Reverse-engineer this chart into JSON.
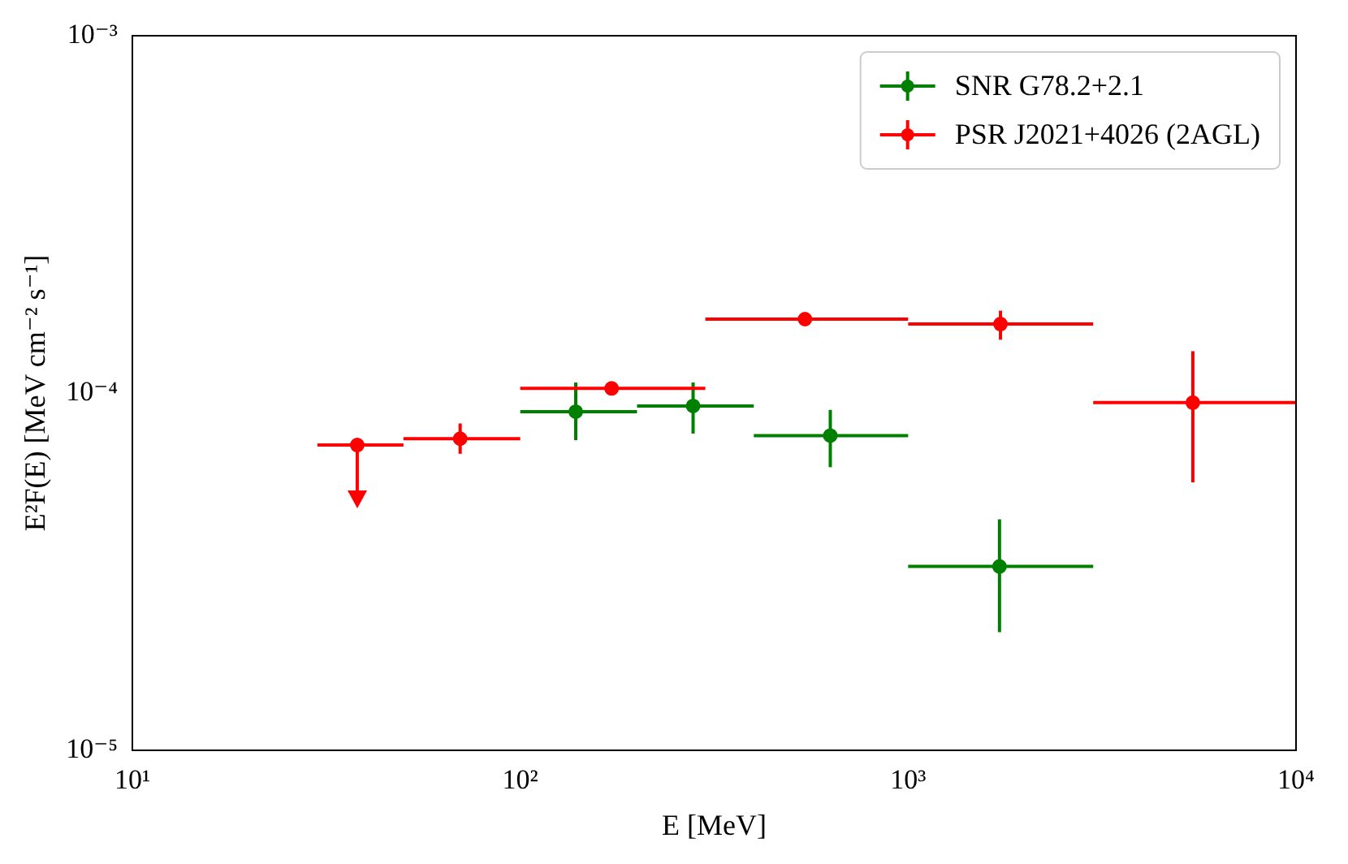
{
  "chart_data": {
    "type": "scatter",
    "xlabel": "E [MeV]",
    "ylabel": "E²F(E) [MeV cm⁻² s⁻¹]",
    "log": "xy",
    "grid": false,
    "legend": "top right",
    "marker": "circle",
    "xlim": [
      10,
      10000
    ],
    "xticks": [
      {
        "value": 10,
        "label": "10¹"
      },
      {
        "value": 100,
        "label": "10²"
      },
      {
        "value": 1000,
        "label": "10³"
      },
      {
        "value": 10000,
        "label": "10⁴"
      }
    ],
    "ylim": [
      1e-05,
      0.001
    ],
    "yticks": [
      {
        "value": 1e-05,
        "label": "10⁻⁵"
      },
      {
        "value": 0.0001,
        "label": "10⁻⁴"
      },
      {
        "value": 0.001,
        "label": "10⁻³"
      }
    ],
    "series": [
      {
        "name": "SNR G78.2+2.1",
        "color": "#008000",
        "x": [
          139,
          279,
          630,
          1720
        ],
        "values": [
          8.87e-05,
          9.2e-05,
          7.6e-05,
          3.27e-05
        ],
        "xerrors": [
          [
            100,
            200
          ],
          [
            200,
            400
          ],
          [
            400,
            1000
          ],
          [
            1000,
            3000
          ]
        ],
        "errors": [
          [
            7.38e-05,
            0.000107
          ],
          [
            7.7e-05,
            0.000107
          ],
          [
            6.2e-05,
            8.97e-05
          ],
          [
            2.14e-05,
            4.43e-05
          ]
        ]
      },
      {
        "name": "PSR J2021+4026 (2AGL)",
        "color": "#ff0000",
        "x": [
          38,
          70,
          172,
          542,
          1730,
          5420
        ],
        "values": [
          7.15e-05,
          7.45e-05,
          0.000103,
          0.000161,
          0.000156,
          9.4e-05
        ],
        "xerrors": [
          [
            30,
            50
          ],
          [
            50,
            100
          ],
          [
            100,
            300
          ],
          [
            300,
            1000
          ],
          [
            1000,
            3000
          ],
          [
            3000,
            10000
          ]
        ],
        "errors": [
          [
            5.3e-05,
            7.15e-05
          ],
          [
            6.76e-05,
            8.22e-05
          ],
          null,
          null,
          [
            0.000141,
            0.00017
          ],
          [
            5.62e-05,
            0.000131
          ]
        ]
      }
    ]
  }
}
